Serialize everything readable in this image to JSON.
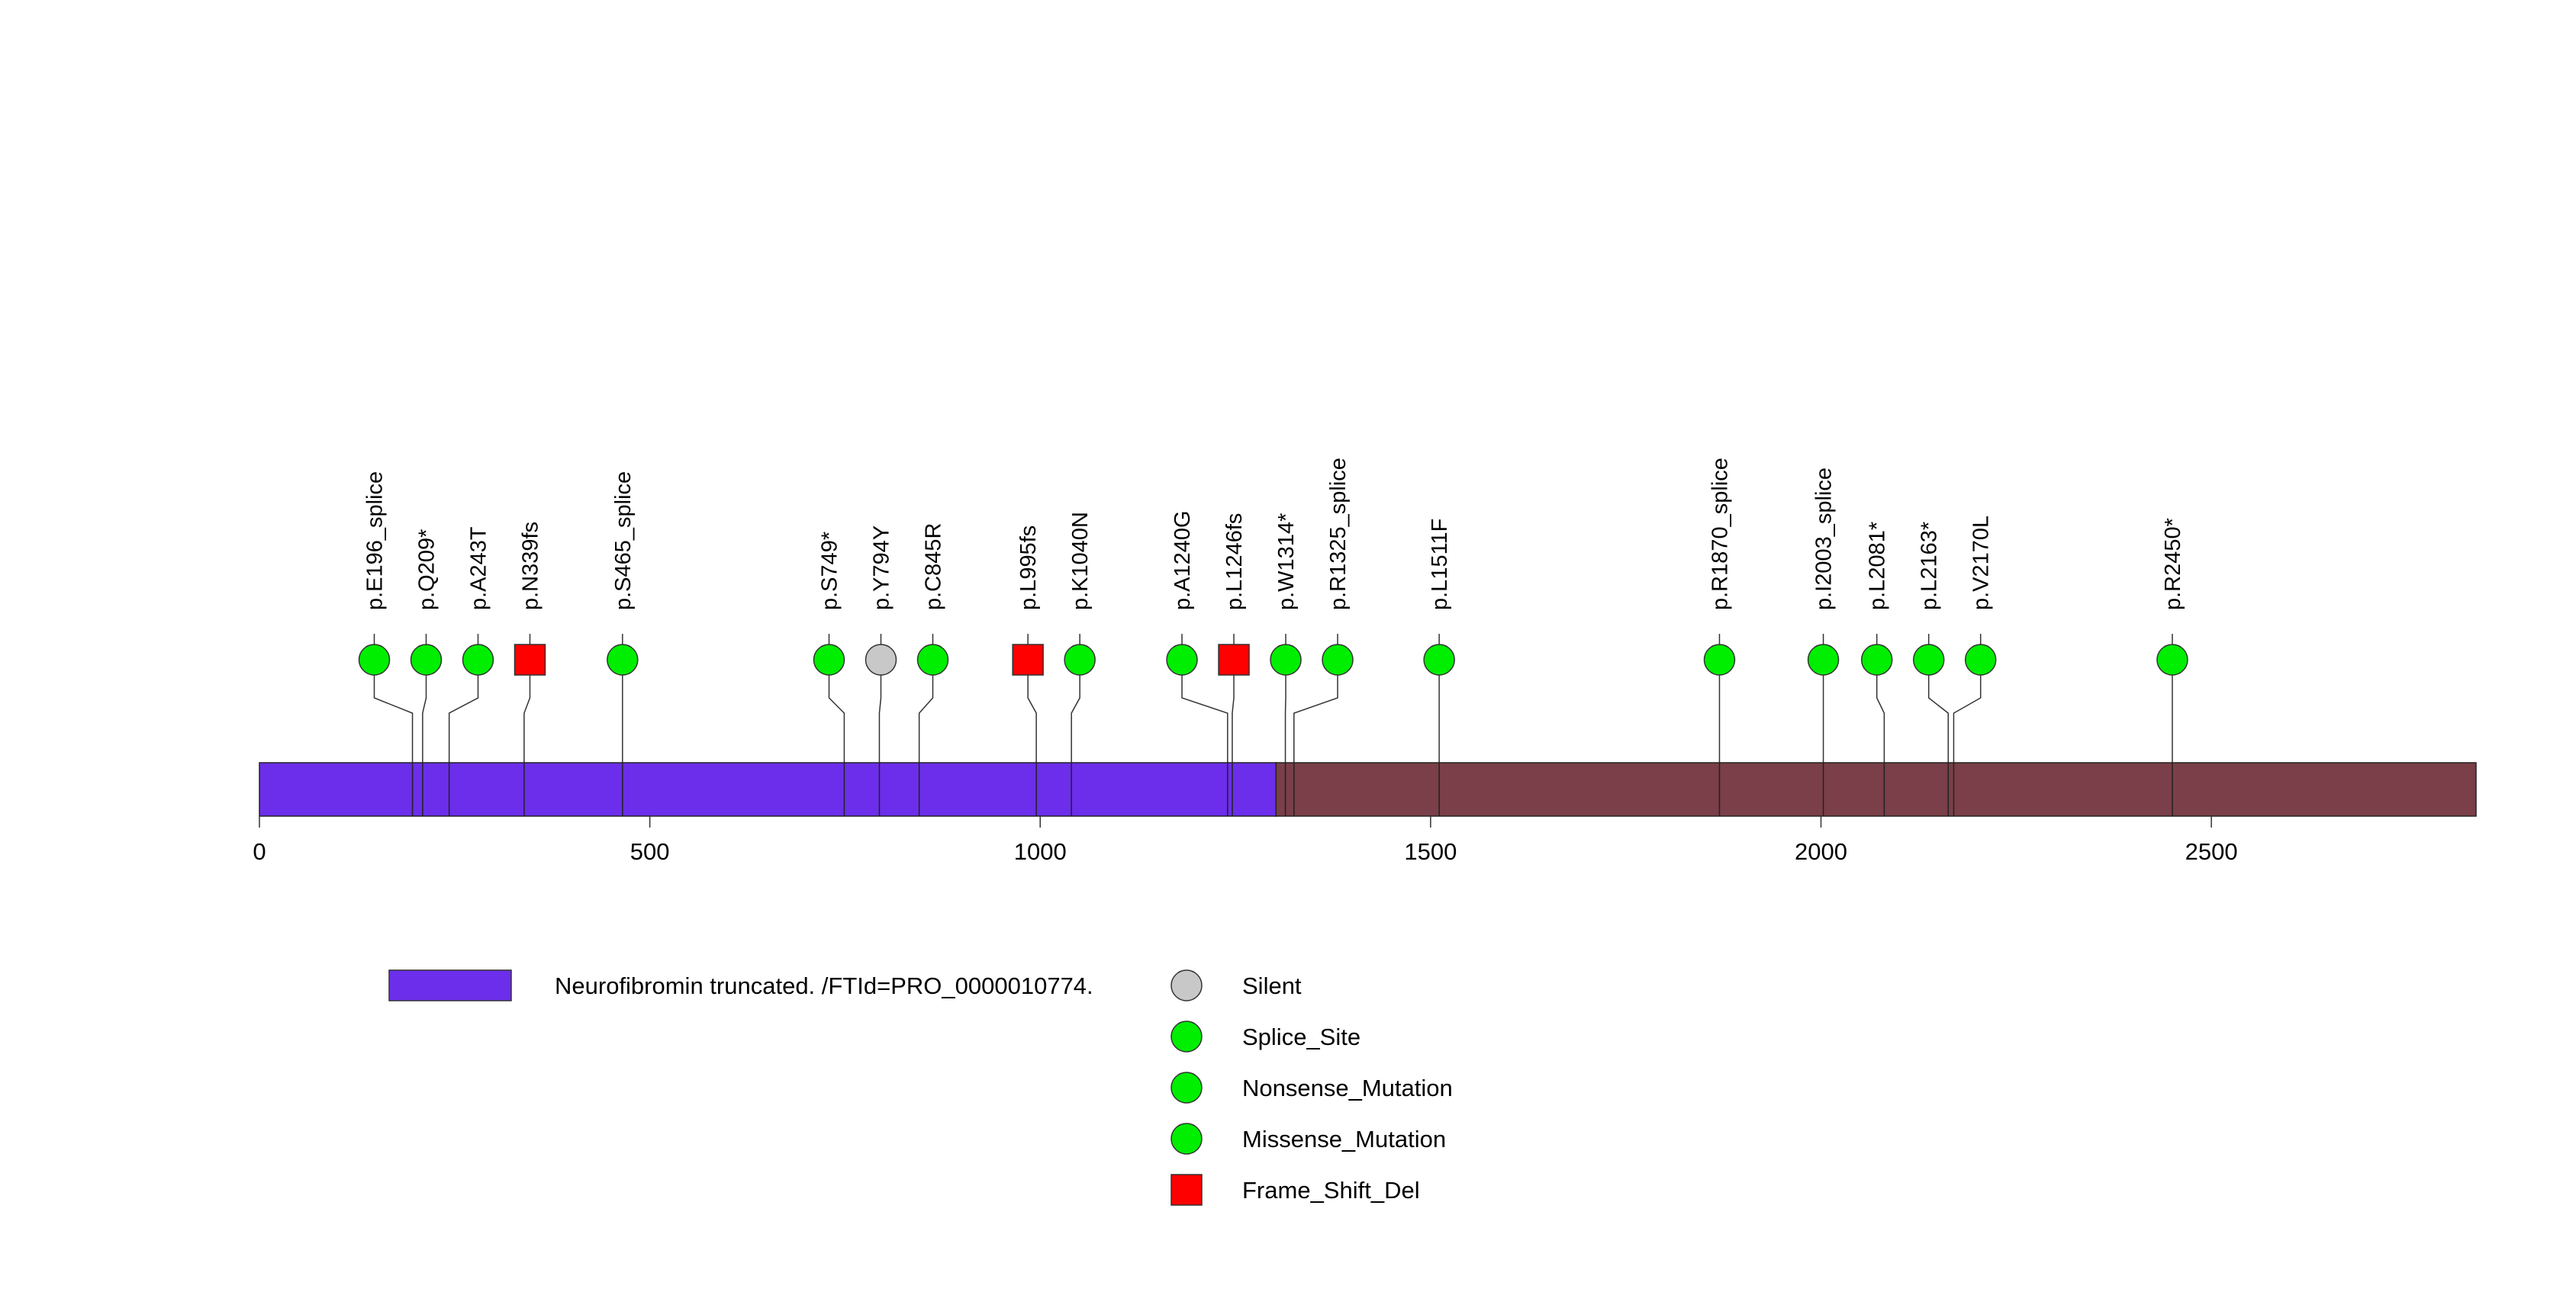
{
  "chart_data": {
    "type": "lollipop",
    "protein_length": 2839,
    "x_axis": {
      "range": [
        0,
        2839
      ],
      "ticks": [
        0,
        500,
        1000,
        1500,
        2000,
        2500
      ]
    },
    "domains": [
      {
        "name": "Neurofibromin truncated. /FTId=PRO_0000010774.",
        "start": 1,
        "end": 1303,
        "color": "#6c2eea"
      },
      {
        "name": "",
        "start": 1303,
        "end": 2839,
        "color": "#7a3f48"
      }
    ],
    "mutations": [
      {
        "label": "p.E196_splice",
        "position": 196,
        "type": "Splice_Site",
        "shape": "circle",
        "color": "#00ee00"
      },
      {
        "label": "p.Q209*",
        "position": 209,
        "type": "Nonsense_Mutation",
        "shape": "circle",
        "color": "#00ee00"
      },
      {
        "label": "p.A243T",
        "position": 243,
        "type": "Missense_Mutation",
        "shape": "circle",
        "color": "#00ee00"
      },
      {
        "label": "p.N339fs",
        "position": 339,
        "type": "Frame_Shift_Del",
        "shape": "square",
        "color": "#ff0000"
      },
      {
        "label": "p.S465_splice",
        "position": 465,
        "type": "Splice_Site",
        "shape": "circle",
        "color": "#00ee00"
      },
      {
        "label": "p.S749*",
        "position": 749,
        "type": "Nonsense_Mutation",
        "shape": "circle",
        "color": "#00ee00"
      },
      {
        "label": "p.Y794Y",
        "position": 794,
        "type": "Silent",
        "shape": "circle",
        "color": "#c8c8c8"
      },
      {
        "label": "p.C845R",
        "position": 845,
        "type": "Missense_Mutation",
        "shape": "circle",
        "color": "#00ee00"
      },
      {
        "label": "p.L995fs",
        "position": 995,
        "type": "Frame_Shift_Del",
        "shape": "square",
        "color": "#ff0000"
      },
      {
        "label": "p.K1040N",
        "position": 1040,
        "type": "Missense_Mutation",
        "shape": "circle",
        "color": "#00ee00"
      },
      {
        "label": "p.A1240G",
        "position": 1240,
        "type": "Missense_Mutation",
        "shape": "circle",
        "color": "#00ee00"
      },
      {
        "label": "p.L1246fs",
        "position": 1246,
        "type": "Frame_Shift_Del",
        "shape": "square",
        "color": "#ff0000"
      },
      {
        "label": "p.W1314*",
        "position": 1314,
        "type": "Nonsense_Mutation",
        "shape": "circle",
        "color": "#00ee00"
      },
      {
        "label": "p.R1325_splice",
        "position": 1325,
        "type": "Splice_Site",
        "shape": "circle",
        "color": "#00ee00"
      },
      {
        "label": "p.L1511F",
        "position": 1511,
        "type": "Missense_Mutation",
        "shape": "circle",
        "color": "#00ee00"
      },
      {
        "label": "p.R1870_splice",
        "position": 1870,
        "type": "Splice_Site",
        "shape": "circle",
        "color": "#00ee00"
      },
      {
        "label": "p.I2003_splice",
        "position": 2003,
        "type": "Splice_Site",
        "shape": "circle",
        "color": "#00ee00"
      },
      {
        "label": "p.L2081*",
        "position": 2081,
        "type": "Nonsense_Mutation",
        "shape": "circle",
        "color": "#00ee00"
      },
      {
        "label": "p.L2163*",
        "position": 2163,
        "type": "Nonsense_Mutation",
        "shape": "circle",
        "color": "#00ee00"
      },
      {
        "label": "p.V2170L",
        "position": 2170,
        "type": "Missense_Mutation",
        "shape": "circle",
        "color": "#00ee00"
      },
      {
        "label": "p.R2450*",
        "position": 2450,
        "type": "Nonsense_Mutation",
        "shape": "circle",
        "color": "#00ee00"
      }
    ],
    "legend": {
      "domains": [
        {
          "label": "Neurofibromin truncated. /FTId=PRO_0000010774.",
          "color": "#6c2eea"
        }
      ],
      "mutation_types": [
        {
          "label": "Silent",
          "shape": "circle",
          "color": "#c8c8c8"
        },
        {
          "label": "Splice_Site",
          "shape": "circle",
          "color": "#00ee00"
        },
        {
          "label": "Nonsense_Mutation",
          "shape": "circle",
          "color": "#00ee00"
        },
        {
          "label": "Missense_Mutation",
          "shape": "circle",
          "color": "#00ee00"
        },
        {
          "label": "Frame_Shift_Del",
          "shape": "square",
          "color": "#ff0000"
        }
      ]
    }
  }
}
